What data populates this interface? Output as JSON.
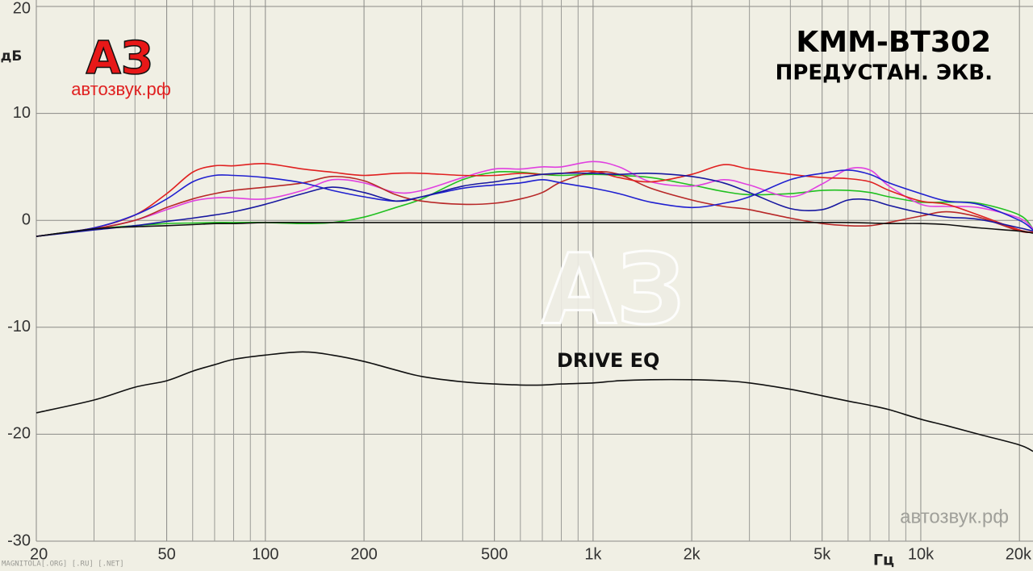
{
  "chart_data": {
    "type": "line",
    "title": "KMM-BT302",
    "subtitle": "ПРЕДУСТАН. ЭКВ.",
    "xlabel": "Гц",
    "ylabel": "дБ",
    "logo": "АЗ",
    "site": "автозвук.рф",
    "watermark": "MAGNITOLA[.ORG] [.RU] [.NET]",
    "log_x": true,
    "grid": true,
    "background": "#f0efe4",
    "xlim": [
      20,
      22000
    ],
    "ylim": [
      -30,
      20
    ],
    "xticks": [
      20,
      50,
      100,
      200,
      500,
      {
        "value": 1000,
        "label": "1k"
      },
      {
        "value": 2000,
        "label": "2k"
      },
      {
        "value": 5000,
        "label": "5k"
      },
      {
        "value": 10000,
        "label": "10k"
      },
      {
        "value": 20000,
        "label": "20k"
      }
    ],
    "xminor": [
      30,
      40,
      60,
      70,
      80,
      90,
      300,
      400,
      600,
      700,
      800,
      900,
      3000,
      4000,
      6000,
      7000,
      8000,
      9000
    ],
    "yticks": [
      -30,
      -20,
      -10,
      0,
      10,
      20
    ],
    "x": [
      20,
      30,
      40,
      50,
      60,
      70,
      80,
      100,
      130,
      160,
      200,
      250,
      300,
      400,
      500,
      600,
      700,
      800,
      1000,
      1200,
      1500,
      2000,
      2500,
      3000,
      4000,
      5000,
      6000,
      7000,
      8000,
      10000,
      12000,
      15000,
      20000,
      22000
    ],
    "series": [
      {
        "color": "#20c020",
        "values": [
          -1.5,
          -0.8,
          -0.5,
          -0.3,
          -0.25,
          -0.2,
          -0.2,
          -0.2,
          -0.3,
          -0.2,
          0.3,
          1.2,
          2,
          3.8,
          4.5,
          4.5,
          4.3,
          4.2,
          4.3,
          4.2,
          4,
          3.3,
          2.7,
          2.4,
          2.5,
          2.8,
          2.8,
          2.6,
          2.2,
          1.7,
          1.7,
          1.6,
          0.5,
          -0.8
        ]
      },
      {
        "color": "#e040e0",
        "values": [
          -1.5,
          -0.8,
          0,
          1,
          1.8,
          2.1,
          2.1,
          2,
          2.8,
          3.8,
          3.5,
          2.6,
          2.8,
          4,
          4.8,
          4.8,
          5,
          5,
          5.5,
          5,
          3.6,
          3.2,
          3.8,
          3.3,
          2.2,
          3.4,
          4.8,
          4.7,
          3.2,
          1.5,
          1.3,
          1.2,
          0.2,
          -0.8
        ]
      },
      {
        "color": "#b82828",
        "values": [
          -1.5,
          -0.8,
          0,
          1.2,
          2,
          2.5,
          2.8,
          3.1,
          3.5,
          4.1,
          3.7,
          2.4,
          1.8,
          1.5,
          1.6,
          2,
          2.6,
          3.6,
          4.5,
          4.3,
          3,
          1.9,
          1.3,
          1,
          0.2,
          -0.3,
          -0.5,
          -0.5,
          -0.2,
          0.4,
          0.8,
          0.3,
          -1,
          -1.1
        ]
      },
      {
        "color": "#e02020",
        "values": [
          -1.5,
          -0.7,
          0.5,
          2.5,
          4.5,
          5.1,
          5.1,
          5.3,
          4.8,
          4.5,
          4.2,
          4.4,
          4.4,
          4.2,
          4.2,
          4.4,
          4.3,
          4.4,
          4.6,
          4,
          3.6,
          4.3,
          5.2,
          4.8,
          4.3,
          4,
          3.9,
          3.6,
          2.8,
          1.8,
          1.5,
          0.5,
          -0.9,
          -1.1
        ]
      },
      {
        "color": "#2020d0",
        "values": [
          -1.5,
          -0.7,
          0.5,
          2,
          3.6,
          4.2,
          4.2,
          4,
          3.5,
          2.8,
          2.2,
          1.8,
          2.2,
          3,
          3.3,
          3.5,
          3.8,
          3.5,
          3,
          2.5,
          1.7,
          1.2,
          1.6,
          2.2,
          3.8,
          4.4,
          4.7,
          4.3,
          3.5,
          2.5,
          1.8,
          1.5,
          0,
          -0.9
        ]
      },
      {
        "color": "#1818a0",
        "values": [
          -1.5,
          -0.9,
          -0.5,
          -0.1,
          0.2,
          0.5,
          0.8,
          1.5,
          2.5,
          3.1,
          2.6,
          1.8,
          2.2,
          3.2,
          3.6,
          4,
          4.3,
          4.4,
          4.4,
          4.3,
          4.4,
          4.1,
          3.5,
          2.6,
          1.1,
          1,
          1.9,
          1.9,
          1.4,
          0.7,
          0.3,
          0.1,
          -0.7,
          -1
        ]
      },
      {
        "color": "#101010",
        "values": [
          -1.5,
          -0.8,
          -0.6,
          -0.5,
          -0.4,
          -0.3,
          -0.3,
          -0.2,
          -0.2,
          -0.2,
          -0.2,
          -0.2,
          -0.2,
          -0.2,
          -0.2,
          -0.2,
          -0.2,
          -0.2,
          -0.2,
          -0.2,
          -0.2,
          -0.2,
          -0.2,
          -0.2,
          -0.2,
          -0.2,
          -0.2,
          -0.25,
          -0.3,
          -0.3,
          -0.4,
          -0.7,
          -1,
          -1.2
        ]
      },
      {
        "name": "DRIVE EQ",
        "color": "#101010",
        "values": [
          -18,
          -16.8,
          -15.6,
          -15,
          -14.1,
          -13.5,
          -13,
          -12.6,
          -12.3,
          -12.6,
          -13.2,
          -14,
          -14.6,
          -15.1,
          -15.3,
          -15.4,
          -15.4,
          -15.3,
          -15.2,
          -15,
          -14.9,
          -14.9,
          -15,
          -15.2,
          -15.8,
          -16.4,
          -16.9,
          -17.3,
          -17.7,
          -18.6,
          -19.2,
          -20,
          -21,
          -21.6
        ]
      }
    ]
  }
}
